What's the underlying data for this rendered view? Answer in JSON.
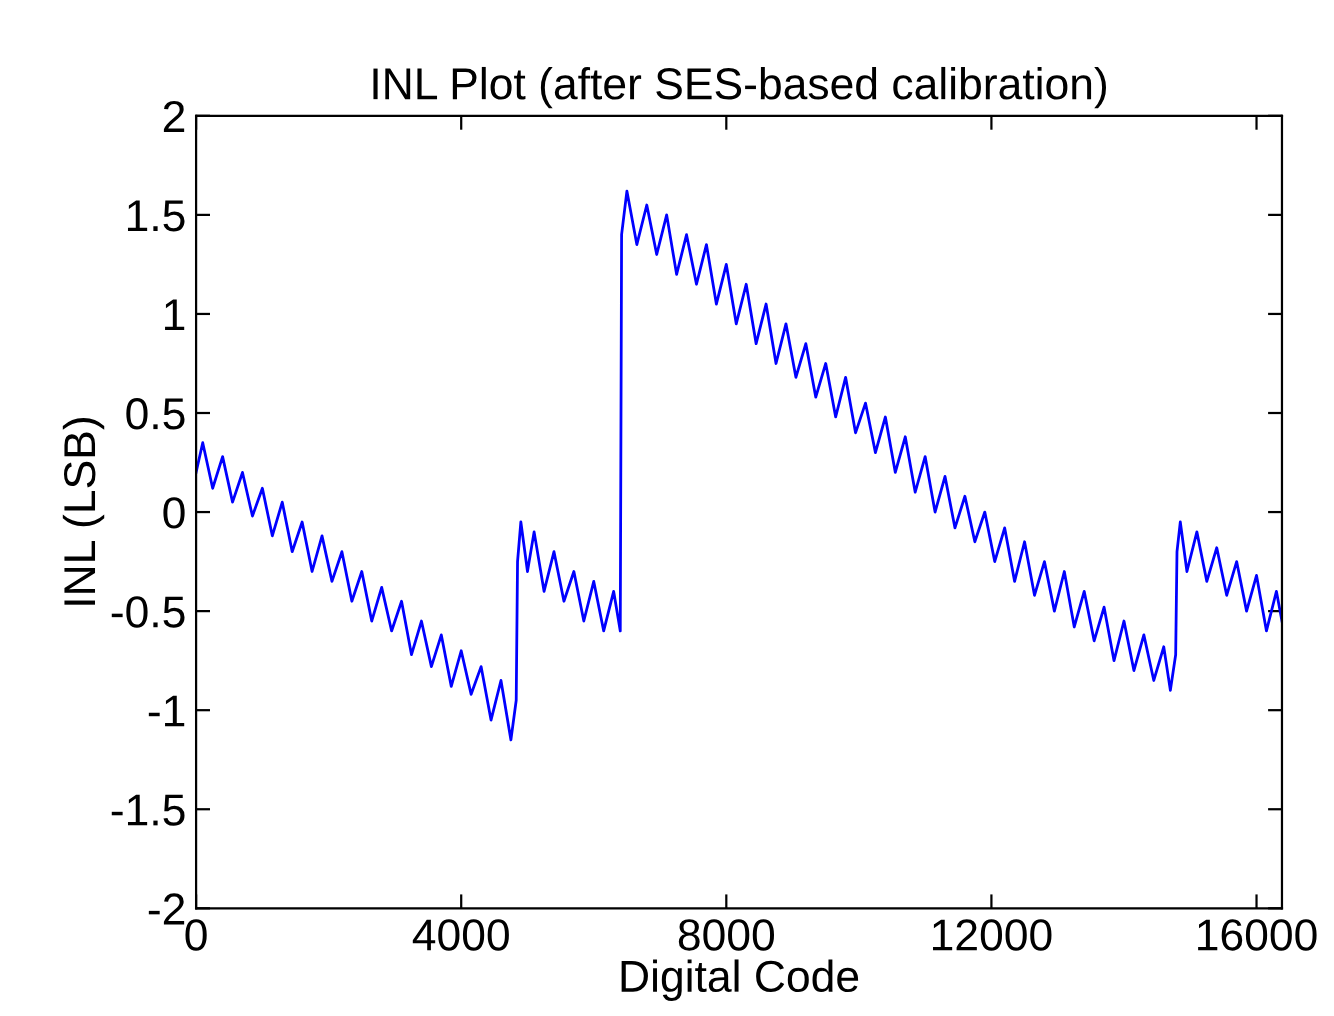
{
  "chart_data": {
    "type": "line",
    "title": "INL Plot (after SES-based calibration)",
    "xlabel": "Digital Code",
    "ylabel": "INL (LSB)",
    "xlim": [
      0,
      16384
    ],
    "xticks": [
      0,
      4000,
      8000,
      12000,
      16000
    ],
    "ylim": [
      -2,
      2
    ],
    "yticks": [
      -2,
      -1.5,
      -1,
      -0.5,
      0,
      0.5,
      1,
      1.5,
      2
    ],
    "grid": false,
    "legend": false,
    "series": [
      {
        "color": "#0000ff",
        "x": [
          0,
          100,
          250,
          400,
          550,
          700,
          850,
          1000,
          1150,
          1300,
          1450,
          1600,
          1750,
          1900,
          2050,
          2200,
          2350,
          2500,
          2650,
          2800,
          2950,
          3100,
          3250,
          3400,
          3550,
          3700,
          3850,
          4000,
          4150,
          4300,
          4450,
          4600,
          4750,
          4830,
          4850,
          4900,
          5000,
          5100,
          5250,
          5400,
          5550,
          5700,
          5850,
          6000,
          6150,
          6300,
          6400,
          6420,
          6500,
          6650,
          6800,
          6950,
          7100,
          7250,
          7400,
          7550,
          7700,
          7850,
          8000,
          8150,
          8300,
          8450,
          8600,
          8750,
          8900,
          9050,
          9200,
          9350,
          9500,
          9650,
          9800,
          9950,
          10100,
          10250,
          10400,
          10550,
          10700,
          10850,
          11000,
          11150,
          11300,
          11450,
          11600,
          11750,
          11900,
          12050,
          12200,
          12350,
          12500,
          12650,
          12800,
          12950,
          13100,
          13250,
          13400,
          13550,
          13700,
          13850,
          14000,
          14150,
          14300,
          14450,
          14600,
          14700,
          14780,
          14800,
          14850,
          14950,
          15100,
          15250,
          15400,
          15550,
          15700,
          15850,
          16000,
          16150,
          16300,
          16384
        ],
        "values": [
          0.2,
          0.35,
          0.12,
          0.28,
          0.05,
          0.2,
          -0.02,
          0.12,
          -0.12,
          0.05,
          -0.2,
          -0.05,
          -0.3,
          -0.12,
          -0.35,
          -0.2,
          -0.45,
          -0.3,
          -0.55,
          -0.38,
          -0.6,
          -0.45,
          -0.72,
          -0.55,
          -0.78,
          -0.62,
          -0.88,
          -0.7,
          -0.92,
          -0.78,
          -1.05,
          -0.85,
          -1.15,
          -0.95,
          -0.25,
          -0.05,
          -0.3,
          -0.1,
          -0.4,
          -0.2,
          -0.45,
          -0.3,
          -0.55,
          -0.35,
          -0.6,
          -0.4,
          -0.6,
          1.4,
          1.62,
          1.35,
          1.55,
          1.3,
          1.5,
          1.2,
          1.4,
          1.15,
          1.35,
          1.05,
          1.25,
          0.95,
          1.15,
          0.85,
          1.05,
          0.75,
          0.95,
          0.68,
          0.85,
          0.58,
          0.75,
          0.48,
          0.68,
          0.4,
          0.55,
          0.3,
          0.48,
          0.2,
          0.38,
          0.1,
          0.28,
          0.0,
          0.18,
          -0.08,
          0.08,
          -0.15,
          0.0,
          -0.25,
          -0.08,
          -0.35,
          -0.15,
          -0.42,
          -0.25,
          -0.5,
          -0.3,
          -0.58,
          -0.4,
          -0.65,
          -0.48,
          -0.75,
          -0.55,
          -0.8,
          -0.62,
          -0.85,
          -0.68,
          -0.9,
          -0.72,
          -0.2,
          -0.05,
          -0.3,
          -0.1,
          -0.35,
          -0.18,
          -0.42,
          -0.25,
          -0.5,
          -0.32,
          -0.6,
          -0.4,
          -0.55
        ]
      }
    ]
  }
}
